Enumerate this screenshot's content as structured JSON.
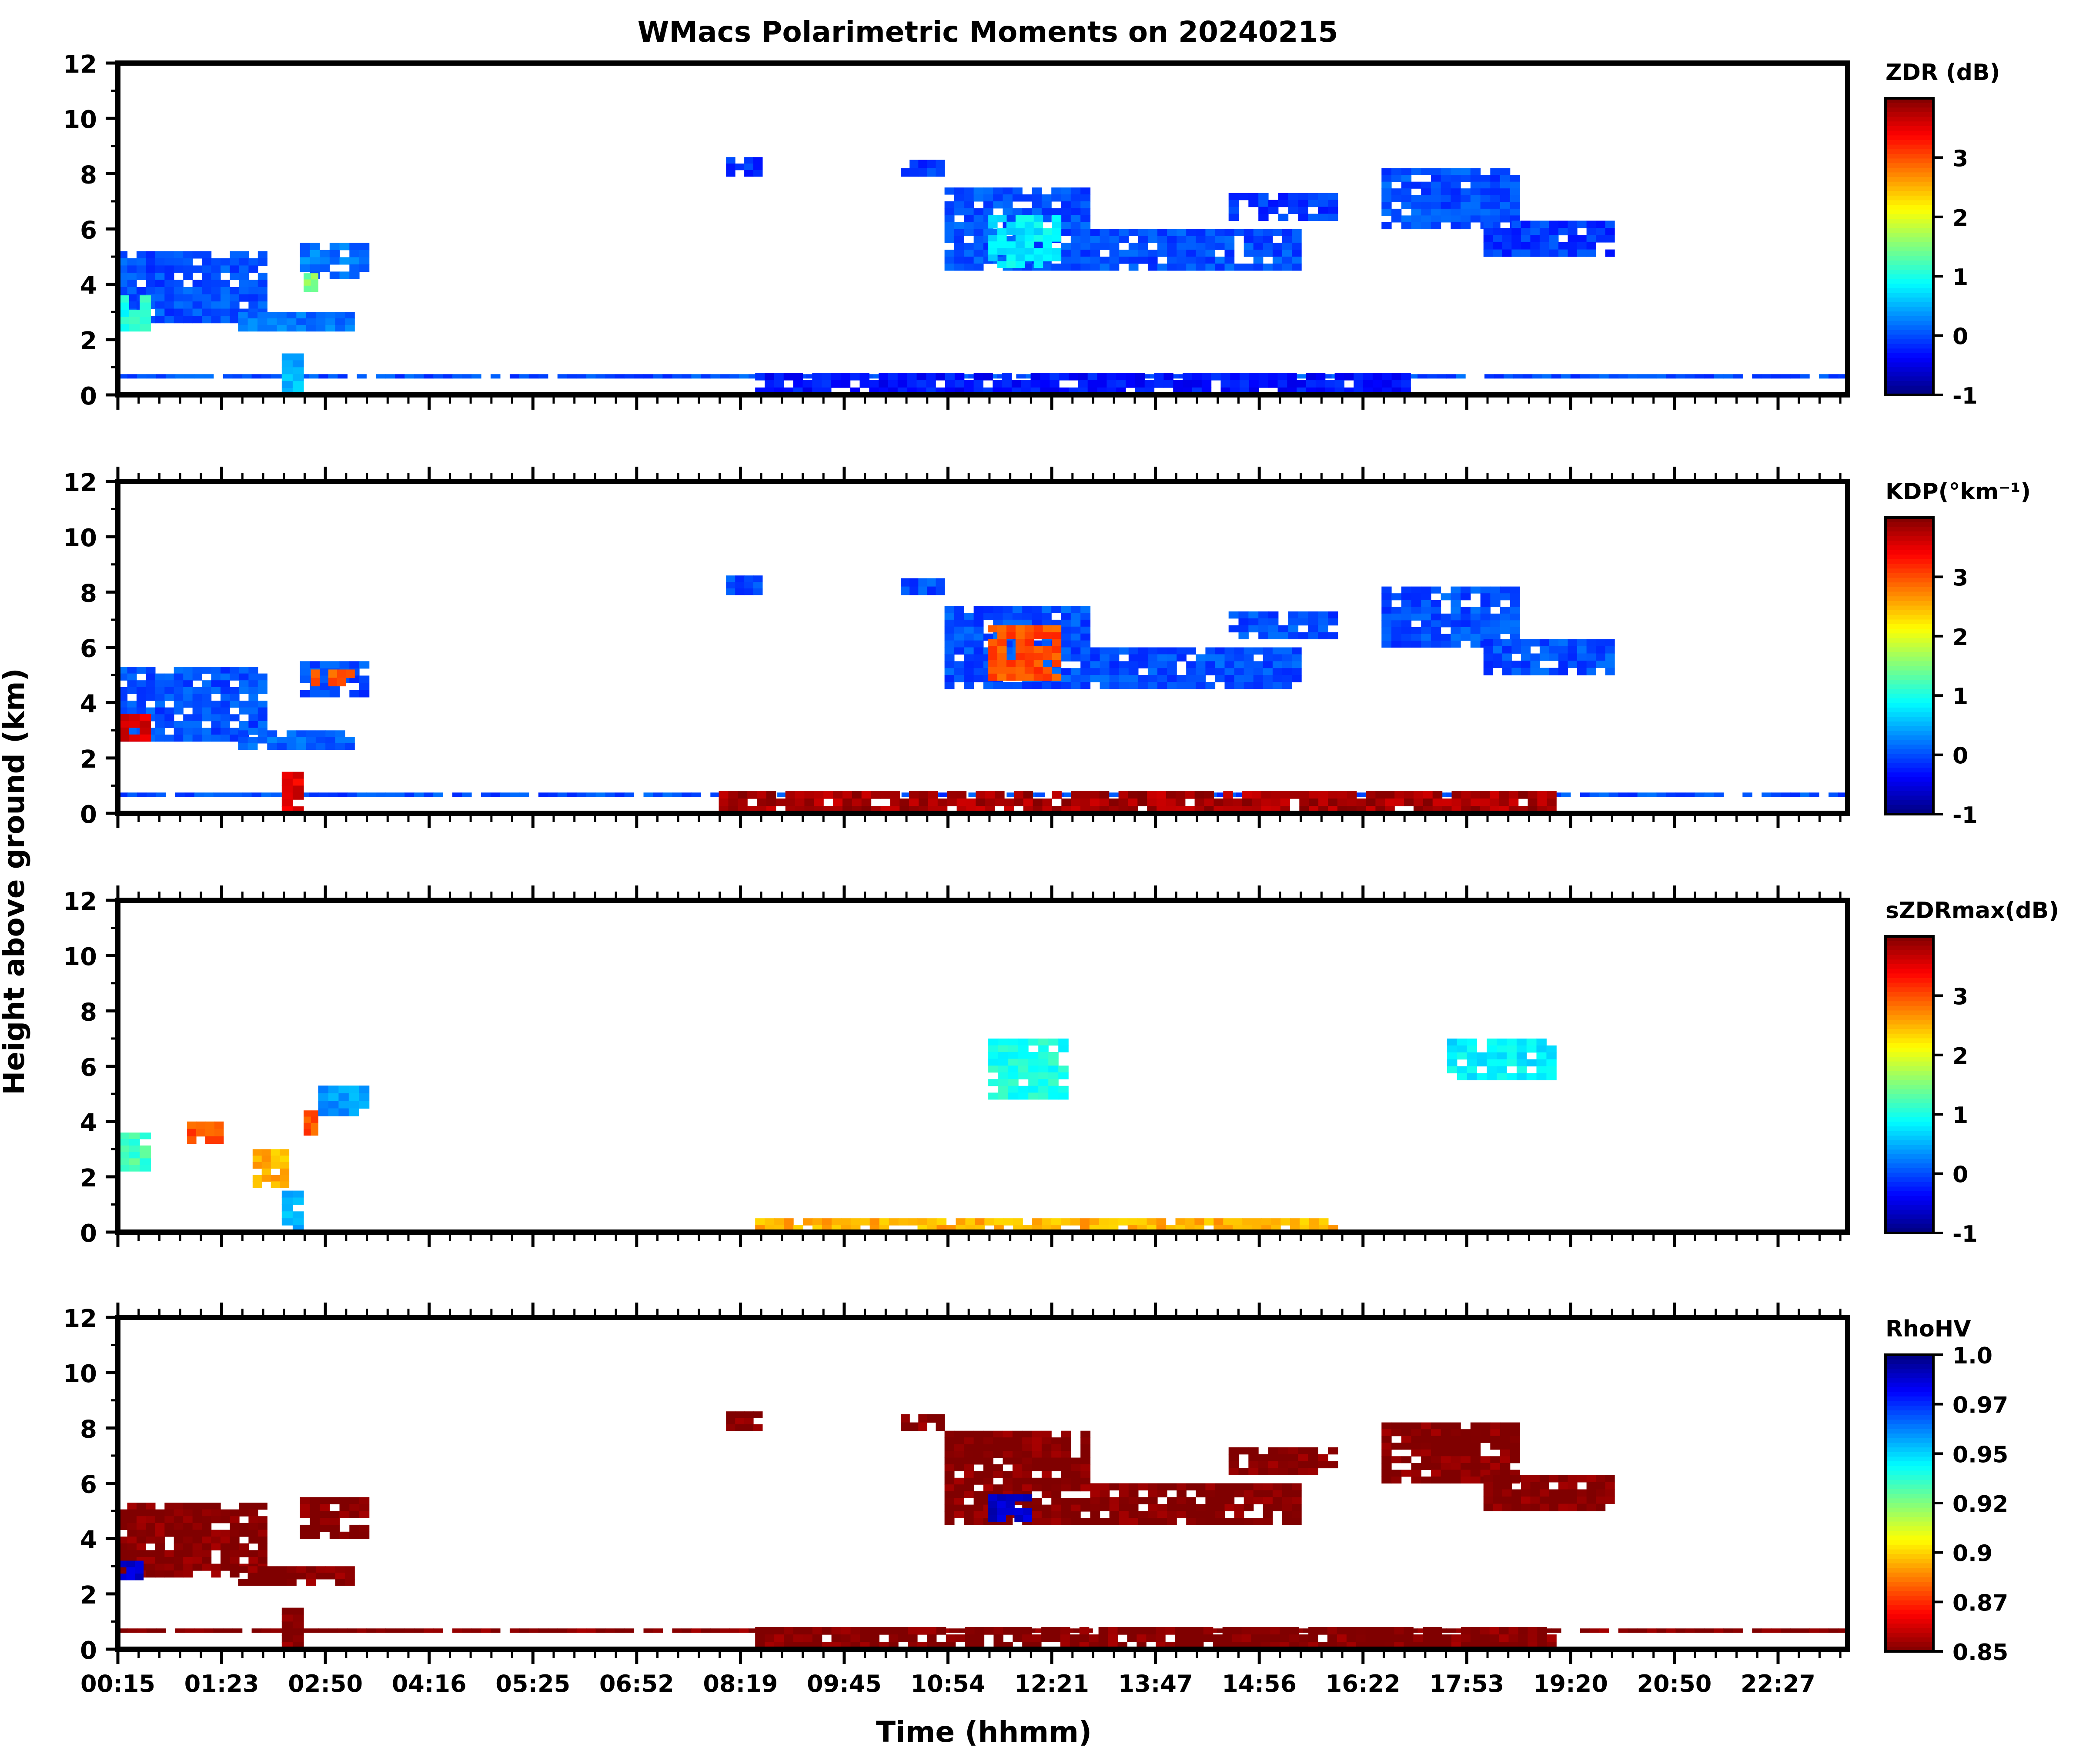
{
  "chart_data": {
    "type": "heatmap",
    "title": "WMacs Polarimetric Moments on 20240215",
    "xlabel": "Time (hhmm)",
    "ylabel": "Height above ground (km)",
    "x_tick_labels": [
      "00:15",
      "01:23",
      "02:50",
      "04:16",
      "05:25",
      "06:52",
      "08:19",
      "09:45",
      "10:54",
      "12:21",
      "13:47",
      "14:56",
      "16:22",
      "17:53",
      "19:20",
      "20:50",
      "22:27"
    ],
    "xlim_hours": [
      0.25,
      24.0
    ],
    "ylim": [
      0,
      12
    ],
    "y_ticks": [
      0,
      2,
      4,
      6,
      8,
      10,
      12
    ],
    "panels": [
      {
        "name": "zdr",
        "colorbar_label": "ZDR (dB)",
        "colormap": "jet",
        "clim": [
          -1,
          4
        ],
        "colorbar_ticks": [
          "-1",
          "0",
          "1",
          "2",
          "3"
        ],
        "colorbar_tick_values": [
          -1,
          0,
          1,
          2,
          3
        ],
        "features": [
          {
            "t0": 0.25,
            "t1": 2.3,
            "h0": 2.6,
            "h1": 5.2,
            "value": 0.0
          },
          {
            "t0": 0.25,
            "t1": 0.7,
            "h0": 2.3,
            "h1": 3.6,
            "value": 1.0
          },
          {
            "t0": 2.75,
            "t1": 3.7,
            "h0": 4.2,
            "h1": 5.5,
            "value": 0.2
          },
          {
            "t0": 2.8,
            "t1": 3.0,
            "h0": 3.5,
            "h1": 4.4,
            "value": 1.5
          },
          {
            "t0": 1.9,
            "t1": 3.5,
            "h0": 2.3,
            "h1": 3.0,
            "value": 0.2
          },
          {
            "t0": 8.6,
            "t1": 9.1,
            "h0": 7.9,
            "h1": 8.6,
            "value": -0.1
          },
          {
            "t0": 11.0,
            "t1": 11.6,
            "h0": 7.9,
            "h1": 8.5,
            "value": -0.1
          },
          {
            "t0": 11.6,
            "t1": 13.6,
            "h0": 4.5,
            "h1": 7.5,
            "value": 0.0
          },
          {
            "t0": 12.2,
            "t1": 13.2,
            "h0": 4.6,
            "h1": 6.5,
            "value": 0.8
          },
          {
            "t0": 13.6,
            "t1": 16.5,
            "h0": 4.5,
            "h1": 6.0,
            "value": 0.0
          },
          {
            "t0": 15.5,
            "t1": 17.0,
            "h0": 6.3,
            "h1": 7.3,
            "value": -0.1
          },
          {
            "t0": 17.6,
            "t1": 19.5,
            "h0": 6.0,
            "h1": 8.2,
            "value": 0.0
          },
          {
            "t0": 19.0,
            "t1": 20.8,
            "h0": 5.0,
            "h1": 6.3,
            "value": -0.1
          },
          {
            "t0": 0.25,
            "t1": 24.0,
            "h0": 0.6,
            "h1": 0.75,
            "value": 0.0
          },
          {
            "t0": 9.0,
            "t1": 18.0,
            "h0": 0.0,
            "h1": 0.8,
            "value": -0.3
          },
          {
            "t0": 2.5,
            "t1": 2.8,
            "h0": 0.0,
            "h1": 1.5,
            "value": 0.5
          }
        ]
      },
      {
        "name": "kdp",
        "colorbar_label": "KDP(°km⁻¹)",
        "colormap": "jet",
        "clim": [
          -1,
          4
        ],
        "colorbar_ticks": [
          "-1",
          "0",
          "1",
          "2",
          "3"
        ],
        "colorbar_tick_values": [
          -1,
          0,
          1,
          2,
          3
        ],
        "features": [
          {
            "t0": 0.25,
            "t1": 2.3,
            "h0": 2.6,
            "h1": 5.3,
            "value": 0.0
          },
          {
            "t0": 0.25,
            "t1": 0.7,
            "h0": 2.6,
            "h1": 3.6,
            "value": 3.5
          },
          {
            "t0": 2.75,
            "t1": 3.7,
            "h0": 4.2,
            "h1": 5.5,
            "value": 0.0
          },
          {
            "t0": 2.9,
            "t1": 3.5,
            "h0": 4.6,
            "h1": 5.2,
            "value": 3.0
          },
          {
            "t0": 1.9,
            "t1": 3.5,
            "h0": 2.3,
            "h1": 3.0,
            "value": 0.1
          },
          {
            "t0": 8.6,
            "t1": 9.1,
            "h0": 7.9,
            "h1": 8.6,
            "value": 0.0
          },
          {
            "t0": 11.0,
            "t1": 11.6,
            "h0": 7.9,
            "h1": 8.5,
            "value": 0.0
          },
          {
            "t0": 11.6,
            "t1": 13.6,
            "h0": 4.5,
            "h1": 7.5,
            "value": 0.0
          },
          {
            "t0": 12.2,
            "t1": 13.2,
            "h0": 4.8,
            "h1": 6.8,
            "value": 3.0
          },
          {
            "t0": 13.6,
            "t1": 16.5,
            "h0": 4.5,
            "h1": 6.0,
            "value": 0.0
          },
          {
            "t0": 15.5,
            "t1": 17.0,
            "h0": 6.3,
            "h1": 7.3,
            "value": 0.0
          },
          {
            "t0": 17.6,
            "t1": 19.5,
            "h0": 6.0,
            "h1": 8.2,
            "value": 0.0
          },
          {
            "t0": 19.0,
            "t1": 20.8,
            "h0": 5.0,
            "h1": 6.3,
            "value": 0.0
          },
          {
            "t0": 0.25,
            "t1": 24.0,
            "h0": 0.6,
            "h1": 0.75,
            "value": 0.0
          },
          {
            "t0": 8.5,
            "t1": 20.0,
            "h0": 0.0,
            "h1": 0.8,
            "value": 3.8
          },
          {
            "t0": 2.5,
            "t1": 2.8,
            "h0": 0.0,
            "h1": 1.5,
            "value": 3.5
          }
        ]
      },
      {
        "name": "szdrmax",
        "colorbar_label": "sZDRmax(dB)",
        "colormap": "jet",
        "clim": [
          -1,
          4
        ],
        "colorbar_ticks": [
          "-1",
          "0",
          "1",
          "2",
          "3"
        ],
        "colorbar_tick_values": [
          -1,
          0,
          1,
          2,
          3
        ],
        "features": [
          {
            "t0": 0.25,
            "t1": 0.7,
            "h0": 2.2,
            "h1": 3.6,
            "value": 1.2
          },
          {
            "t0": 1.2,
            "t1": 1.7,
            "h0": 3.2,
            "h1": 4.0,
            "value": 3.0
          },
          {
            "t0": 2.1,
            "t1": 2.6,
            "h0": 1.6,
            "h1": 3.0,
            "value": 2.5
          },
          {
            "t0": 2.8,
            "t1": 3.0,
            "h0": 3.5,
            "h1": 4.4,
            "value": 3.0
          },
          {
            "t0": 3.0,
            "t1": 3.7,
            "h0": 4.2,
            "h1": 5.3,
            "value": 0.4
          },
          {
            "t0": 12.2,
            "t1": 13.3,
            "h0": 4.8,
            "h1": 7.0,
            "value": 1.0
          },
          {
            "t0": 18.5,
            "t1": 20.0,
            "h0": 5.5,
            "h1": 7.0,
            "value": 0.8
          },
          {
            "t0": 9.0,
            "t1": 17.0,
            "h0": 0.0,
            "h1": 0.5,
            "value": 2.5
          },
          {
            "t0": 2.5,
            "t1": 2.8,
            "h0": 0.0,
            "h1": 1.5,
            "value": 0.5
          }
        ]
      },
      {
        "name": "rhohv",
        "colorbar_label": "RhoHV",
        "colormap": "jet_r",
        "clim": [
          0.85,
          1.0
        ],
        "colorbar_ticks": [
          "0.85",
          "0.87",
          "0.9",
          "0.92",
          "0.95",
          "0.97",
          "1.0"
        ],
        "colorbar_tick_values": [
          0.85,
          0.875,
          0.9,
          0.925,
          0.95,
          0.975,
          1.0
        ],
        "features": [
          {
            "t0": 0.25,
            "t1": 2.3,
            "h0": 2.6,
            "h1": 5.3,
            "value": 0.85
          },
          {
            "t0": 0.25,
            "t1": 0.6,
            "h0": 2.5,
            "h1": 3.2,
            "value": 0.99
          },
          {
            "t0": 2.75,
            "t1": 3.7,
            "h0": 4.0,
            "h1": 5.5,
            "value": 0.85
          },
          {
            "t0": 1.9,
            "t1": 3.5,
            "h0": 2.3,
            "h1": 3.0,
            "value": 0.85
          },
          {
            "t0": 8.6,
            "t1": 9.1,
            "h0": 7.9,
            "h1": 8.6,
            "value": 0.85
          },
          {
            "t0": 11.0,
            "t1": 11.6,
            "h0": 7.9,
            "h1": 8.5,
            "value": 0.85
          },
          {
            "t0": 11.6,
            "t1": 13.6,
            "h0": 4.5,
            "h1": 7.9,
            "value": 0.85
          },
          {
            "t0": 12.2,
            "t1": 12.8,
            "h0": 4.6,
            "h1": 5.6,
            "value": 0.99
          },
          {
            "t0": 13.6,
            "t1": 16.5,
            "h0": 4.5,
            "h1": 6.0,
            "value": 0.85
          },
          {
            "t0": 15.5,
            "t1": 17.0,
            "h0": 6.3,
            "h1": 7.3,
            "value": 0.85
          },
          {
            "t0": 17.6,
            "t1": 19.5,
            "h0": 6.0,
            "h1": 8.2,
            "value": 0.85
          },
          {
            "t0": 19.0,
            "t1": 20.8,
            "h0": 5.0,
            "h1": 6.3,
            "value": 0.85
          },
          {
            "t0": 0.25,
            "t1": 24.0,
            "h0": 0.6,
            "h1": 0.75,
            "value": 0.85
          },
          {
            "t0": 9.0,
            "t1": 20.0,
            "h0": 0.0,
            "h1": 0.8,
            "value": 0.85
          },
          {
            "t0": 2.5,
            "t1": 2.8,
            "h0": 0.0,
            "h1": 1.5,
            "value": 0.85
          }
        ]
      }
    ]
  }
}
